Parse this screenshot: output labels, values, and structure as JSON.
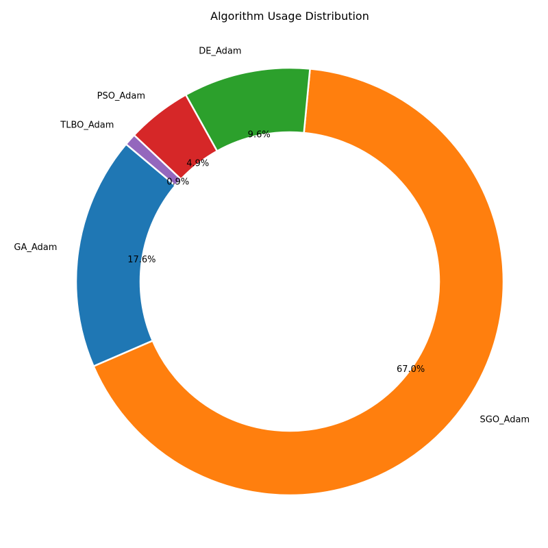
{
  "chart_data": {
    "type": "pie",
    "style": "donut",
    "title": "Algorithm Usage Distribution",
    "start_angle_deg": 140,
    "direction": "counterclockwise",
    "slices": [
      {
        "label": "GA_Adam",
        "percent": 17.6,
        "percent_label": "17.6%",
        "color": "#1f77b4"
      },
      {
        "label": "SGO_Adam",
        "percent": 67.0,
        "percent_label": "67.0%",
        "color": "#ff7f0e"
      },
      {
        "label": "DE_Adam",
        "percent": 9.6,
        "percent_label": "9.6%",
        "color": "#2ca02c"
      },
      {
        "label": "PSO_Adam",
        "percent": 4.9,
        "percent_label": "4.9%",
        "color": "#d62728"
      },
      {
        "label": "TLBO_Adam",
        "percent": 0.9,
        "percent_label": "0.9%",
        "color": "#9467bd"
      }
    ]
  }
}
